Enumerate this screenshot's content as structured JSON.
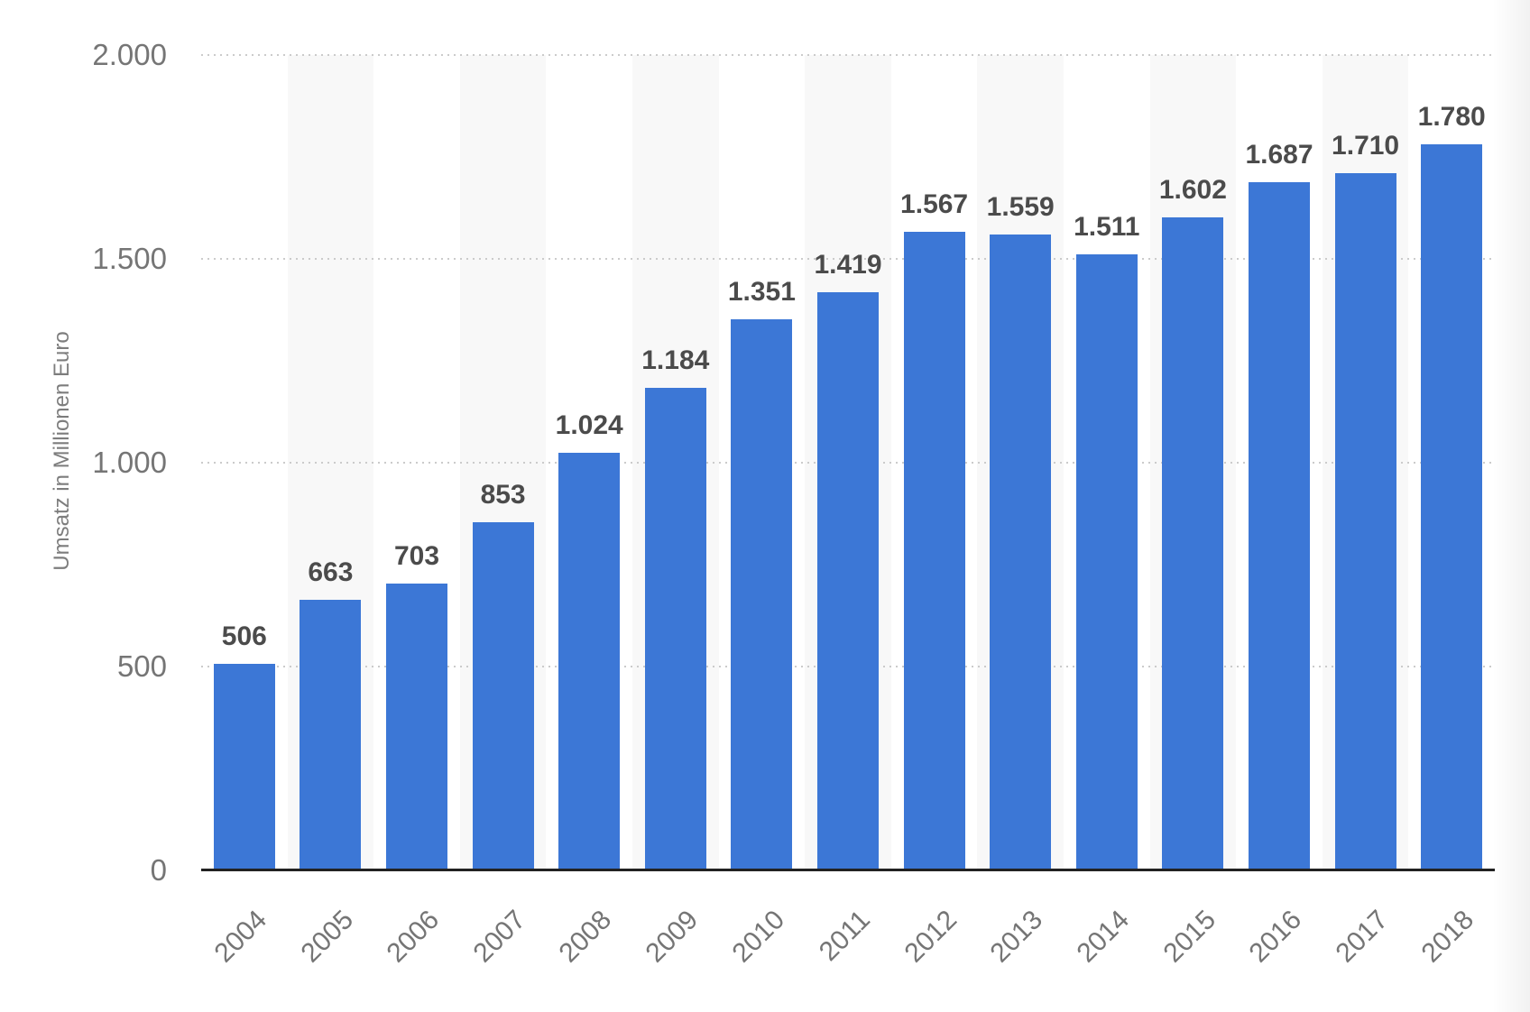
{
  "chart_data": {
    "type": "bar",
    "title": "",
    "xlabel": "",
    "ylabel": "Umsatz in Millionen Euro",
    "categories": [
      "2004",
      "2005",
      "2006",
      "2007",
      "2008",
      "2009",
      "2010",
      "2011",
      "2012",
      "2013",
      "2014",
      "2015",
      "2016",
      "2017",
      "2018"
    ],
    "values": [
      506,
      663,
      703,
      853,
      1024,
      1184,
      1351,
      1419,
      1567,
      1559,
      1511,
      1602,
      1687,
      1710,
      1780
    ],
    "value_labels": [
      "506",
      "663",
      "703",
      "853",
      "1.024",
      "1.184",
      "1.351",
      "1.419",
      "1.567",
      "1.559",
      "1.511",
      "1.602",
      "1.687",
      "1.710",
      "1.780"
    ],
    "ylim": [
      0,
      2000
    ],
    "yticks": [
      0,
      500,
      1000,
      1500,
      2000
    ],
    "ytick_labels": [
      "0",
      "500",
      "1.000",
      "1.500",
      "2.000"
    ],
    "grid": "horizontal-dotted",
    "legend_position": "none",
    "band_pattern": "alternating-columns-shaded-odd",
    "colors": {
      "bar": "#3C77D6",
      "column_band": "#f8f8f8",
      "value_label": "#4b4b4b",
      "axis_text": "#757575",
      "axis_line": "#222222",
      "gridline": "#cbcbcb",
      "background": "#ffffff"
    }
  }
}
